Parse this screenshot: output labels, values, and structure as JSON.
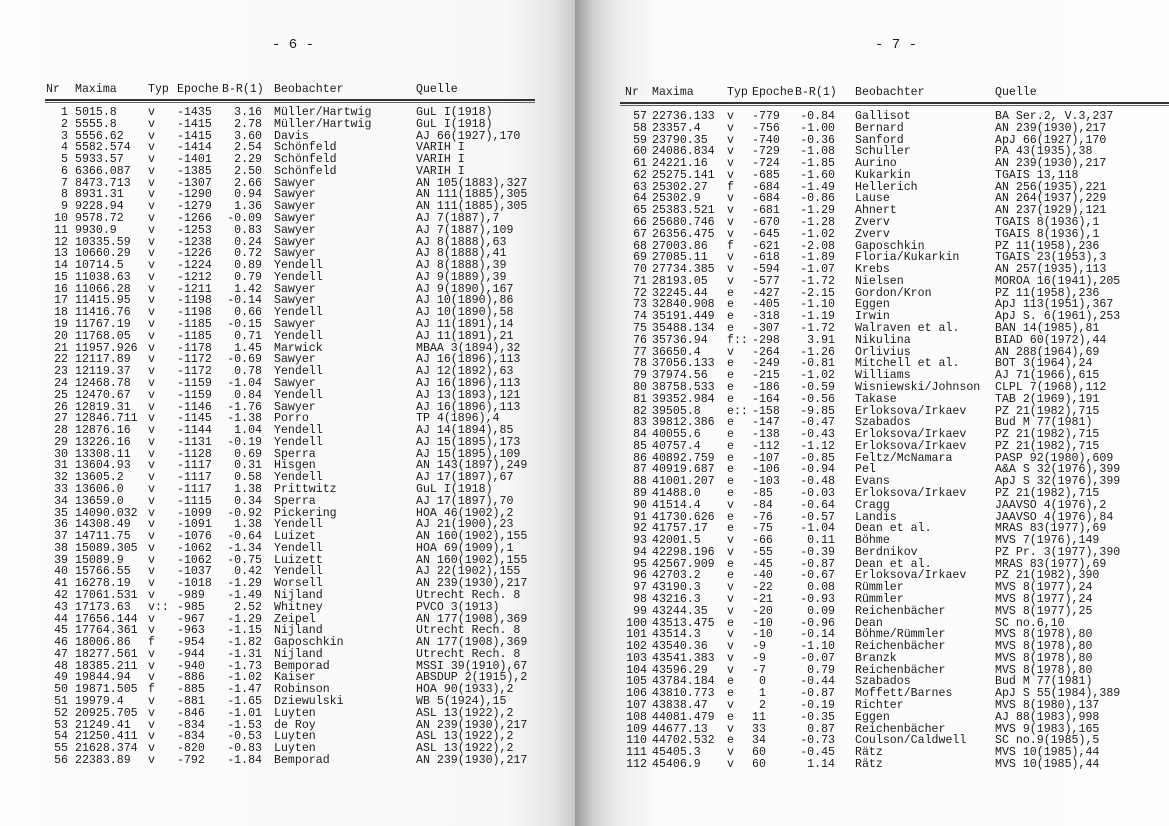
{
  "columns": [
    "Nr",
    "Maxima",
    "Typ",
    "Epoche",
    "B-R(1)",
    "Beobachter",
    "Quelle"
  ],
  "pages": [
    {
      "page_number": "- 6 -",
      "rows": [
        [
          "1",
          "5015.8",
          "v",
          "-1435",
          "3.16",
          "Müller/Hartwig",
          "GuL I(1918)"
        ],
        [
          "2",
          "5555.8",
          "v",
          "-1415",
          "2.78",
          "Müller/Hartwig",
          "GuL I(1918)"
        ],
        [
          "3",
          "5556.62",
          "v",
          "-1415",
          "3.60",
          "Davis",
          "AJ 66(1927),170"
        ],
        [
          "4",
          "5582.574",
          "v",
          "-1414",
          "2.54",
          "Schönfeld",
          "VARIH I"
        ],
        [
          "5",
          "5933.57",
          "v",
          "-1401",
          "2.29",
          "Schönfeld",
          "VARIH I"
        ],
        [
          "6",
          "6366.087",
          "v",
          "-1385",
          "2.50",
          "Schönfeld",
          "VARIH I"
        ],
        [
          "7",
          "8473.713",
          "v",
          "-1307",
          "2.66",
          "Sawyer",
          "AN 105(1883),327"
        ],
        [
          "8",
          "8931.31",
          "v",
          "-1290",
          "0.94",
          "Sawyer",
          "AN 111(1885),305"
        ],
        [
          "9",
          "9228.94",
          "v",
          "-1279",
          "1.36",
          "Sawyer",
          "AN 111(1885),305"
        ],
        [
          "10",
          "9578.72",
          "v",
          "-1266",
          "-0.09",
          "Sawyer",
          "AJ 7(1887),7"
        ],
        [
          "11",
          "9930.9",
          "v",
          "-1253",
          "0.83",
          "Sawyer",
          "AJ 7(1887),109"
        ],
        [
          "12",
          "10335.59",
          "v",
          "-1238",
          "0.24",
          "Sawyer",
          "AJ 8(1888),63"
        ],
        [
          "13",
          "10660.29",
          "v",
          "-1226",
          "0.72",
          "Sawyer",
          "AJ 8(1888),41"
        ],
        [
          "14",
          "10714.5",
          "v",
          "-1224",
          "0.89",
          "Yendell",
          "AJ 8(1888),39"
        ],
        [
          "15",
          "11038.63",
          "v",
          "-1212",
          "0.79",
          "Yendell",
          "AJ 9(1889),39"
        ],
        [
          "16",
          "11066.28",
          "v",
          "-1211",
          "1.42",
          "Sawyer",
          "AJ 9(1890),167"
        ],
        [
          "17",
          "11415.95",
          "v",
          "-1198",
          "-0.14",
          "Sawyer",
          "AJ 10(1890),86"
        ],
        [
          "18",
          "11416.76",
          "v",
          "-1198",
          "0.66",
          "Yendell",
          "AJ 10(1890),58"
        ],
        [
          "19",
          "11767.19",
          "v",
          "-1185",
          "-0.15",
          "Sawyer",
          "AJ 11(1891),14"
        ],
        [
          "20",
          "11768.05",
          "v",
          "-1185",
          "0.71",
          "Yendell",
          "AJ 11(1891),21"
        ],
        [
          "21",
          "11957.926",
          "v",
          "-1178",
          "1.45",
          "Marwick",
          "MBAA 3(1894),32"
        ],
        [
          "22",
          "12117.89",
          "v",
          "-1172",
          "-0.69",
          "Sawyer",
          "AJ 16(1896),113"
        ],
        [
          "23",
          "12119.37",
          "v",
          "-1172",
          "0.78",
          "Yendell",
          "AJ 12(1892),63"
        ],
        [
          "24",
          "12468.78",
          "v",
          "-1159",
          "-1.04",
          "Sawyer",
          "AJ 16(1896),113"
        ],
        [
          "25",
          "12470.67",
          "v",
          "-1159",
          "0.84",
          "Yendell",
          "AJ 13(1893),121"
        ],
        [
          "26",
          "12819.31",
          "v",
          "-1146",
          "-1.76",
          "Sawyer",
          "AJ 16(1896),113"
        ],
        [
          "27",
          "12846.711",
          "v",
          "-1145",
          "-1.38",
          "Porro",
          "TP 4(1896),4"
        ],
        [
          "28",
          "12876.16",
          "v",
          "-1144",
          "1.04",
          "Yendell",
          "AJ 14(1894),85"
        ],
        [
          "29",
          "13226.16",
          "v",
          "-1131",
          "-0.19",
          "Yendell",
          "AJ 15(1895),173"
        ],
        [
          "30",
          "13308.11",
          "v",
          "-1128",
          "0.69",
          "Sperra",
          "AJ 15(1895),109"
        ],
        [
          "31",
          "13604.93",
          "v",
          "-1117",
          "0.31",
          "Hisgen",
          "AN 143(1897),249"
        ],
        [
          "32",
          "13605.2",
          "v",
          "-1117",
          "0.58",
          "Yendell",
          "AJ 17(1897),67"
        ],
        [
          "33",
          "13606.0",
          "v",
          "-1117",
          "1.38",
          "Prittwitz",
          "GuL I(1918)"
        ],
        [
          "34",
          "13659.0",
          "v",
          "-1115",
          "0.34",
          "Sperra",
          "AJ 17(1897),70"
        ],
        [
          "35",
          "14090.032",
          "v",
          "-1099",
          "-0.92",
          "Pickering",
          "HOA 46(1902),2"
        ],
        [
          "36",
          "14308.49",
          "v",
          "-1091",
          "1.38",
          "Yendell",
          "AJ 21(1900),23"
        ],
        [
          "37",
          "14711.75",
          "v",
          "-1076",
          "-0.64",
          "Luizet",
          "AN 160(1902),155"
        ],
        [
          "38",
          "15089.305",
          "v",
          "-1062",
          "-1.34",
          "Yendell",
          "HOA 69(1909),1"
        ],
        [
          "39",
          "15089.9",
          "v",
          "-1062",
          "-0.75",
          "Luizett",
          "AN 160(1902),155"
        ],
        [
          "40",
          "15766.55",
          "v",
          "-1037",
          "0.42",
          "Yendell",
          "AJ 22(1902),155"
        ],
        [
          "41",
          "16278.19",
          "v",
          "-1018",
          "-1.29",
          "Worsell",
          "AN 239(1930),217"
        ],
        [
          "42",
          "17061.531",
          "v",
          "-989",
          "-1.49",
          "Nijland",
          "Utrecht Rech. 8"
        ],
        [
          "43",
          "17173.63",
          "v::",
          "-985",
          "2.52",
          "Whitney",
          "PVCO 3(1913)"
        ],
        [
          "44",
          "17656.144",
          "v",
          "-967",
          "-1.29",
          "Zeipel",
          "AN 177(1908),369"
        ],
        [
          "45",
          "17764.361",
          "v",
          "-963",
          "-1.15",
          "Nijland",
          "Utrecht Rech. 8"
        ],
        [
          "46",
          "18006.86",
          "f",
          "-954",
          "-1.82",
          "Gaposchkin",
          "AN 177(1908),369"
        ],
        [
          "47",
          "18277.561",
          "v",
          "-944",
          "-1.31",
          "Nijland",
          "Utrecht Rech. 8"
        ],
        [
          "48",
          "18385.211",
          "v",
          "-940",
          "-1.73",
          "Bemporad",
          "MSSI 39(1910),67"
        ],
        [
          "49",
          "19844.94",
          "v",
          "-886",
          "-1.02",
          "Kaiser",
          "ABSDUP 2(1915),2"
        ],
        [
          "50",
          "19871.505",
          "f",
          "-885",
          "-1.47",
          "Robinson",
          "HOA 90(1933),2"
        ],
        [
          "51",
          "19979.4",
          "v",
          "-881",
          "-1.65",
          "Dziewulski",
          "WB 5(1924),15"
        ],
        [
          "52",
          "20925.705",
          "v",
          "-846",
          "-1.01",
          "Luyten",
          "ASL 13(1922),2"
        ],
        [
          "53",
          "21249.41",
          "v",
          "-834",
          "-1.53",
          "de Roy",
          "AN 239(1930),217"
        ],
        [
          "54",
          "21250.411",
          "v",
          "-834",
          "-0.53",
          "Luyten",
          "ASL 13(1922),2"
        ],
        [
          "55",
          "21628.374",
          "v",
          "-820",
          "-0.83",
          "Luyten",
          "ASL 13(1922),2"
        ],
        [
          "56",
          "22383.89",
          "v",
          "-792",
          "-1.84",
          "Bemporad",
          "AN 239(1930),217"
        ]
      ]
    },
    {
      "page_number": "- 7 -",
      "rows": [
        [
          "57",
          "22736.133",
          "v",
          "-779",
          "-0.84",
          "Gallisot",
          "BA Ser.2, V.3,237"
        ],
        [
          "58",
          "23357.4",
          "v",
          "-756",
          "-1.00",
          "Bernard",
          "AN 239(1930),217"
        ],
        [
          "59",
          "23790.35",
          "v",
          "-740",
          "-0.36",
          "Sanford",
          "ApJ 66(1927),170"
        ],
        [
          "60",
          "24086.834",
          "v",
          "-729",
          "-1.08",
          "Schuller",
          "PA 43(1935),38"
        ],
        [
          "61",
          "24221.16",
          "v",
          "-724",
          "-1.85",
          "Aurino",
          "AN 239(1930),217"
        ],
        [
          "62",
          "25275.141",
          "v",
          "-685",
          "-1.60",
          "Kukarkin",
          "TGAIS 13,118"
        ],
        [
          "63",
          "25302.27",
          "f",
          "-684",
          "-1.49",
          "Hellerich",
          "AN 256(1935),221"
        ],
        [
          "64",
          "25302.9",
          "v",
          "-684",
          "-0.86",
          "Lause",
          "AN 264(1937),229"
        ],
        [
          "65",
          "25383.521",
          "v",
          "-681",
          "-1.29",
          "Ahnert",
          "AN 237(1929),121"
        ],
        [
          "66",
          "25680.746",
          "v",
          "-670",
          "-1.28",
          "Zverv",
          "TGAIS 8(1936),1"
        ],
        [
          "67",
          "26356.475",
          "v",
          "-645",
          "-1.02",
          "Zverv",
          "TGAIS 8(1936),1"
        ],
        [
          "68",
          "27003.86",
          "f",
          "-621",
          "-2.08",
          "Gaposchkin",
          "PZ 11(1958),236"
        ],
        [
          "69",
          "27085.11",
          "v",
          "-618",
          "-1.89",
          "Floria/Kukarkin",
          "TGAIS 23(1953),3"
        ],
        [
          "70",
          "27734.385",
          "v",
          "-594",
          "-1.07",
          "Krebs",
          "AN 257(1935),113"
        ],
        [
          "71",
          "28193.05",
          "v",
          "-577",
          "-1.72",
          "Nielsen",
          "MOROA 16(1941),205"
        ],
        [
          "72",
          "32245.44",
          "e",
          "-427",
          "-2.15",
          "Gordon/Kron",
          "PZ 11(1958),236"
        ],
        [
          "73",
          "32840.908",
          "e",
          "-405",
          "-1.10",
          "Eggen",
          "ApJ 113(1951),367"
        ],
        [
          "74",
          "35191.449",
          "e",
          "-318",
          "-1.19",
          "Irwin",
          "ApJ S. 6(1961),253"
        ],
        [
          "75",
          "35488.134",
          "e",
          "-307",
          "-1.72",
          "Walraven et al.",
          "BAN 14(1985),81"
        ],
        [
          "76",
          "35736.94",
          "f::",
          "-298",
          "3.91",
          "Nikulina",
          "BIAD 60(1972),44"
        ],
        [
          "77",
          "36650.4",
          "v",
          "-264",
          "-1.26",
          "Orlivius",
          "AN 288(1964),69"
        ],
        [
          "78",
          "37056.133",
          "e",
          "-249",
          "-0.81",
          "Mitchell et al.",
          "BOT 3(1964),24"
        ],
        [
          "79",
          "37974.56",
          "e",
          "-215",
          "-1.02",
          "Williams",
          "AJ 71(1966),615"
        ],
        [
          "80",
          "38758.533",
          "e",
          "-186",
          "-0.59",
          "Wisniewski/Johnson",
          "CLPL 7(1968),112"
        ],
        [
          "81",
          "39352.984",
          "e",
          "-164",
          "-0.56",
          "Takase",
          "TAB 2(1969),191"
        ],
        [
          "82",
          "39505.8",
          "e::",
          "-158",
          "-9.85",
          "Erloksova/Irkaev",
          "PZ 21(1982),715"
        ],
        [
          "83",
          "39812.386",
          "e",
          "-147",
          "-0.47",
          "Szabados",
          "Bud M 77(1981)"
        ],
        [
          "84",
          "40055.6",
          "e",
          "-138",
          "-0.43",
          "Erloksova/Irkaev",
          "PZ 21(1982),715"
        ],
        [
          "85",
          "40757.4",
          "e",
          "-112",
          "-1.12",
          "Erloksova/Irkaev",
          "PZ 21(1982),715"
        ],
        [
          "86",
          "40892.759",
          "e",
          "-107",
          "-0.85",
          "Feltz/McNamara",
          "PASP 92(1980),609"
        ],
        [
          "87",
          "40919.687",
          "e",
          "-106",
          "-0.94",
          "Pel",
          "A&A S 32(1976),399"
        ],
        [
          "88",
          "41001.207",
          "e",
          "-103",
          "-0.48",
          "Evans",
          "ApJ S 32(1976),399"
        ],
        [
          "89",
          "41488.0",
          "e",
          "-85",
          "-0.03",
          "Erloksova/Irkaev",
          "PZ 21(1982),715"
        ],
        [
          "90",
          "41514.4",
          "v",
          "-84",
          "-0.64",
          "Cragg",
          "JAAVSO 4(1976),2"
        ],
        [
          "91",
          "41730.626",
          "e",
          "-76",
          "-0.57",
          "Landis",
          "JAAVSO 4(1976),84"
        ],
        [
          "92",
          "41757.17",
          "e",
          "-75",
          "-1.04",
          "Dean et al.",
          "MRAS 83(1977),69"
        ],
        [
          "93",
          "42001.5",
          "v",
          "-66",
          "0.11",
          "Böhme",
          "MVS 7(1976),149"
        ],
        [
          "94",
          "42298.196",
          "v",
          "-55",
          "-0.39",
          "Berdnikov",
          "PZ Pr. 3(1977),390"
        ],
        [
          "95",
          "42567.909",
          "e",
          "-45",
          "-0.87",
          "Dean et al.",
          "MRAS 83(1977),69"
        ],
        [
          "96",
          "42703.2",
          "e",
          "-40",
          "-0.67",
          "Erloksova/Irkaev",
          "PZ 21(1982),390"
        ],
        [
          "97",
          "43190.3",
          "v",
          "-22",
          "0.08",
          "Rümmler",
          "MVS 8(1977),24"
        ],
        [
          "98",
          "43216.3",
          "v",
          "-21",
          "-0.93",
          "Rümmler",
          "MVS 8(1977),24"
        ],
        [
          "99",
          "43244.35",
          "v",
          "-20",
          "0.09",
          "Reichenbächer",
          "MVS 8(1977),25"
        ],
        [
          "100",
          "43513.475",
          "e",
          "-10",
          "-0.96",
          "Dean",
          "SC no.6,10"
        ],
        [
          "101",
          "43514.3",
          "v",
          "-10",
          "-0.14",
          "Böhme/Rümmler",
          "MVS 8(1978),80"
        ],
        [
          "102",
          "43540.36",
          "v",
          "-9",
          "-1.10",
          "Reichenbächer",
          "MVS 8(1978),80"
        ],
        [
          "103",
          "43541.383",
          "v",
          "-9",
          "-0.07",
          "Branzk",
          "MVS 8(1978),80"
        ],
        [
          "104",
          "43596.29",
          "v",
          "-7",
          "0.79",
          "Reichenbächer",
          "MVS 8(1978),80"
        ],
        [
          "105",
          "43784.184",
          "e",
          "0",
          "-0.44",
          "Szabados",
          "Bud M 77(1981)"
        ],
        [
          "106",
          "43810.773",
          "e",
          "1",
          "-0.87",
          "Moffett/Barnes",
          "ApJ S 55(1984),389"
        ],
        [
          "107",
          "43838.47",
          "v",
          "2",
          "-0.19",
          "Richter",
          "MVS 8(1980),137"
        ],
        [
          "108",
          "44081.479",
          "e",
          "11",
          "-0.35",
          "Eggen",
          "AJ 88(1983),998"
        ],
        [
          "109",
          "44677.13",
          "v",
          "33",
          "0.87",
          "Reichenbächer",
          "MVS 9(1983),165"
        ],
        [
          "110",
          "44702.532",
          "e",
          "34",
          "-0.73",
          "Coulson/Caldwell",
          "SC no.9(1985),5"
        ],
        [
          "111",
          "45405.3",
          "v",
          "60",
          "-0.45",
          "Rätz",
          "MVS 10(1985),44"
        ],
        [
          "112",
          "45406.9",
          "v",
          "60",
          "1.14",
          "Rätz",
          "MVS 10(1985),44"
        ]
      ]
    }
  ]
}
